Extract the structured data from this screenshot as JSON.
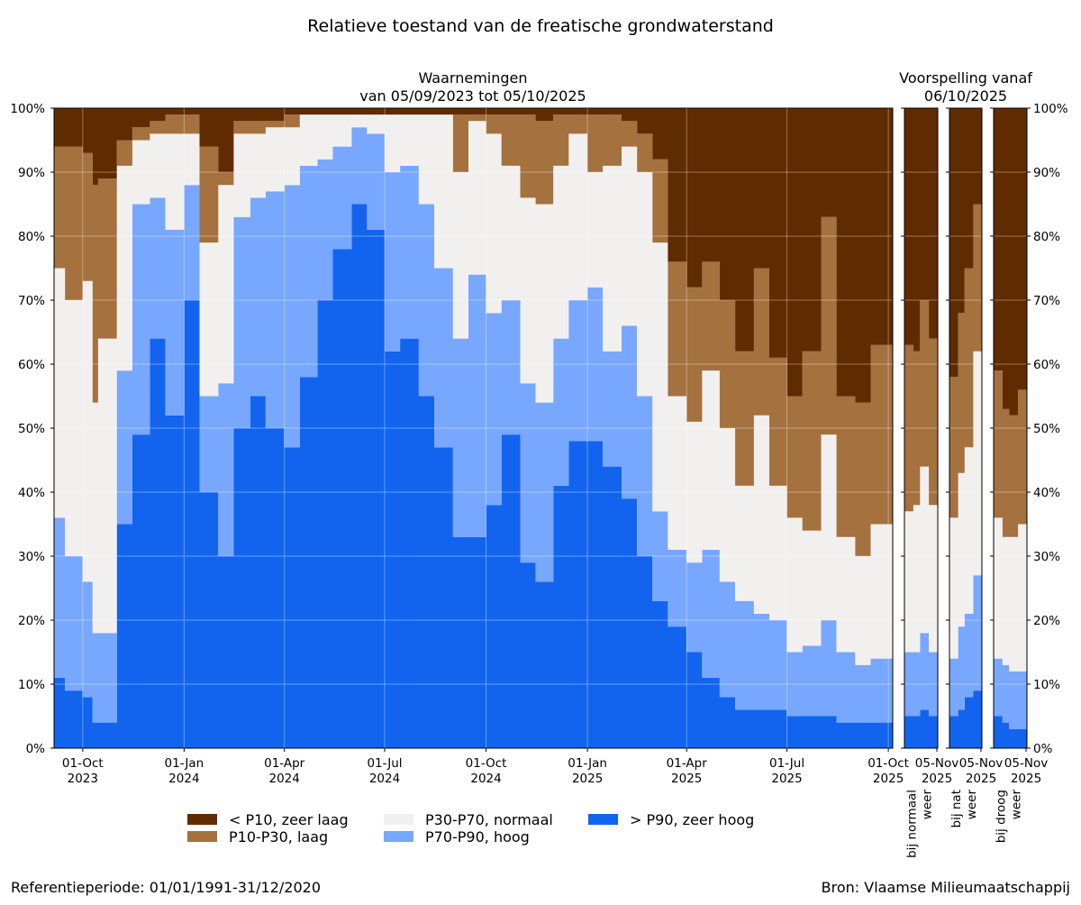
{
  "chart_data": {
    "type": "area",
    "stacked": true,
    "title": "Relatieve toestand van de freatische grondwaterstand",
    "ylim": [
      0,
      100
    ],
    "y_unit": "%",
    "y_ticks": [
      "0%",
      "10%",
      "20%",
      "30%",
      "40%",
      "50%",
      "60%",
      "70%",
      "80%",
      "90%",
      "100%"
    ],
    "grid": true,
    "legend_placement": "bottom",
    "colors": {
      "> P90, zeer hoog": "#1264ef",
      "P70-P90, hoog": "#78a7ff",
      "P30-P70, normaal": "#f2f0ee",
      "P10-P30, laag": "#a4713f",
      "< P10, zeer laag": "#612b00"
    },
    "legend": [
      {
        "label": "< P10, zeer laag"
      },
      {
        "label": "P10-P30, laag"
      },
      {
        "label": "P30-P70, normaal"
      },
      {
        "label": "P70-P90, hoog"
      },
      {
        "label": "> P90, zeer hoog"
      }
    ],
    "observed": {
      "title": [
        "Waarnemingen",
        "van 05/09/2023 tot 05/10/2025"
      ],
      "x_ticks": [
        {
          "date": "2023-10-01",
          "label": [
            "01-Oct",
            "2023"
          ]
        },
        {
          "date": "2024-01-01",
          "label": [
            "01-Jan",
            "2024"
          ]
        },
        {
          "date": "2024-04-01",
          "label": [
            "01-Apr",
            "2024"
          ]
        },
        {
          "date": "2024-07-01",
          "label": [
            "01-Jul",
            "2024"
          ]
        },
        {
          "date": "2024-10-01",
          "label": [
            "01-Oct",
            "2024"
          ]
        },
        {
          "date": "2025-01-01",
          "label": [
            "01-Jan",
            "2025"
          ]
        },
        {
          "date": "2025-04-01",
          "label": [
            "01-Apr",
            "2025"
          ]
        },
        {
          "date": "2025-07-01",
          "label": [
            "01-Jul",
            "2025"
          ]
        },
        {
          "date": "2025-10-01",
          "label": [
            "01-Oct",
            "2025"
          ]
        }
      ],
      "dates": [
        "2023-09-05",
        "2023-09-15",
        "2023-10-01",
        "2023-10-10",
        "2023-10-15",
        "2023-11-01",
        "2023-11-15",
        "2023-12-01",
        "2023-12-15",
        "2024-01-01",
        "2024-01-15",
        "2024-02-01",
        "2024-02-15",
        "2024-03-01",
        "2024-03-15",
        "2024-04-01",
        "2024-04-15",
        "2024-05-01",
        "2024-05-15",
        "2024-06-01",
        "2024-06-15",
        "2024-07-01",
        "2024-07-15",
        "2024-08-01",
        "2024-08-15",
        "2024-09-01",
        "2024-09-15",
        "2024-10-01",
        "2024-10-15",
        "2024-11-01",
        "2024-11-15",
        "2024-12-01",
        "2024-12-15",
        "2025-01-01",
        "2025-01-15",
        "2025-02-01",
        "2025-02-15",
        "2025-03-01",
        "2025-03-15",
        "2025-04-01",
        "2025-04-15",
        "2025-05-01",
        "2025-05-15",
        "2025-06-01",
        "2025-06-15",
        "2025-07-01",
        "2025-07-15",
        "2025-08-01",
        "2025-08-15",
        "2025-09-01",
        "2025-09-15",
        "2025-10-05"
      ],
      "series": [
        {
          "name": "> P90, zeer hoog",
          "values": [
            11,
            9,
            8,
            4,
            4,
            35,
            49,
            64,
            52,
            70,
            40,
            30,
            50,
            55,
            50,
            47,
            58,
            70,
            78,
            85,
            81,
            62,
            64,
            55,
            47,
            33,
            33,
            38,
            49,
            29,
            26,
            41,
            48,
            48,
            44,
            39,
            30,
            23,
            19,
            15,
            11,
            8,
            6,
            6,
            6,
            5,
            5,
            5,
            4,
            4,
            4,
            5
          ]
        },
        {
          "name": "P70-P90, hoog",
          "values": [
            25,
            21,
            18,
            14,
            14,
            24,
            36,
            22,
            29,
            18,
            15,
            27,
            33,
            31,
            37,
            41,
            33,
            22,
            16,
            12,
            15,
            28,
            27,
            30,
            28,
            31,
            41,
            30,
            21,
            28,
            28,
            23,
            22,
            24,
            18,
            27,
            25,
            14,
            12,
            14,
            20,
            18,
            17,
            15,
            14,
            10,
            11,
            15,
            11,
            9,
            10,
            10
          ]
        },
        {
          "name": "P30-P70, normaal",
          "values": [
            39,
            40,
            47,
            36,
            46,
            32,
            10,
            10,
            15,
            8,
            24,
            31,
            13,
            10,
            10,
            9,
            8,
            7,
            5,
            2,
            3,
            9,
            8,
            14,
            24,
            26,
            24,
            28,
            21,
            29,
            31,
            27,
            26,
            18,
            29,
            28,
            35,
            42,
            24,
            22,
            28,
            24,
            18,
            31,
            21,
            21,
            18,
            29,
            18,
            17,
            21,
            22
          ]
        },
        {
          "name": "P10-P30, laag",
          "values": [
            19,
            24,
            20,
            34,
            25,
            4,
            2,
            2,
            3,
            3,
            15,
            2,
            2,
            2,
            1,
            2,
            0,
            0,
            0,
            0,
            0,
            0,
            0,
            0,
            0,
            9,
            1,
            3,
            8,
            13,
            13,
            8,
            3,
            9,
            8,
            4,
            6,
            13,
            21,
            21,
            17,
            20,
            21,
            23,
            20,
            19,
            28,
            34,
            22,
            24,
            28,
            25
          ]
        },
        {
          "name": "< P10, zeer laag",
          "values": [
            6,
            6,
            7,
            12,
            11,
            5,
            3,
            2,
            1,
            1,
            6,
            10,
            2,
            2,
            2,
            1,
            1,
            1,
            1,
            1,
            1,
            1,
            1,
            1,
            1,
            1,
            1,
            1,
            1,
            1,
            2,
            1,
            1,
            1,
            1,
            2,
            4,
            8,
            24,
            28,
            24,
            30,
            38,
            25,
            39,
            45,
            38,
            17,
            45,
            46,
            37,
            38
          ]
        }
      ]
    },
    "forecast_title": [
      "Voorspelling vanaf",
      "06/10/2025"
    ],
    "forecasts": [
      {
        "label": [
          "bij normaal",
          "weer"
        ],
        "x_tick": [
          "05-Nov",
          "2025"
        ],
        "dates": [
          "2025-10-06",
          "2025-10-14",
          "2025-10-20",
          "2025-10-28",
          "2025-11-05"
        ],
        "series": [
          {
            "name": "> P90, zeer hoog",
            "values": [
              5,
              5,
              6,
              5,
              5
            ]
          },
          {
            "name": "P70-P90, hoog",
            "values": [
              10,
              10,
              12,
              10,
              8
            ]
          },
          {
            "name": "P30-P70, normaal",
            "values": [
              22,
              23,
              26,
              23,
              27
            ]
          },
          {
            "name": "P10-P30, laag",
            "values": [
              26,
              24,
              26,
              26,
              23
            ]
          },
          {
            "name": "< P10, zeer laag",
            "values": [
              37,
              38,
              30,
              36,
              37
            ]
          }
        ]
      },
      {
        "label": [
          "bij nat",
          "weer"
        ],
        "x_tick": [
          "05-Nov",
          "2025"
        ],
        "dates": [
          "2025-10-06",
          "2025-10-14",
          "2025-10-20",
          "2025-10-28",
          "2025-11-05"
        ],
        "series": [
          {
            "name": "> P90, zeer hoog",
            "values": [
              5,
              6,
              8,
              9,
              11
            ]
          },
          {
            "name": "P70-P90, hoog",
            "values": [
              9,
              13,
              13,
              18,
              20
            ]
          },
          {
            "name": "P30-P70, normaal",
            "values": [
              22,
              24,
              26,
              35,
              39
            ]
          },
          {
            "name": "P10-P30, laag",
            "values": [
              22,
              25,
              28,
              23,
              18
            ]
          },
          {
            "name": "< P10, zeer laag",
            "values": [
              42,
              32,
              25,
              15,
              12
            ]
          }
        ]
      },
      {
        "label": [
          "bij droog",
          "weer"
        ],
        "x_tick": [
          "05-Nov",
          "2025"
        ],
        "dates": [
          "2025-10-06",
          "2025-10-14",
          "2025-10-20",
          "2025-10-28",
          "2025-11-05"
        ],
        "series": [
          {
            "name": "> P90, zeer hoog",
            "values": [
              5,
              4,
              3,
              3,
              3
            ]
          },
          {
            "name": "P70-P90, hoog",
            "values": [
              9,
              9,
              9,
              9,
              9
            ]
          },
          {
            "name": "P30-P70, normaal",
            "values": [
              22,
              20,
              21,
              23,
              19
            ]
          },
          {
            "name": "P10-P30, laag",
            "values": [
              23,
              20,
              19,
              21,
              19
            ]
          },
          {
            "name": "< P10, zeer laag",
            "values": [
              41,
              47,
              48,
              44,
              50
            ]
          }
        ]
      }
    ]
  },
  "footer": {
    "reference": "Referentieperiode: 01/01/1991-31/12/2020",
    "source": "Bron: Vlaamse Milieumaatschappij"
  }
}
